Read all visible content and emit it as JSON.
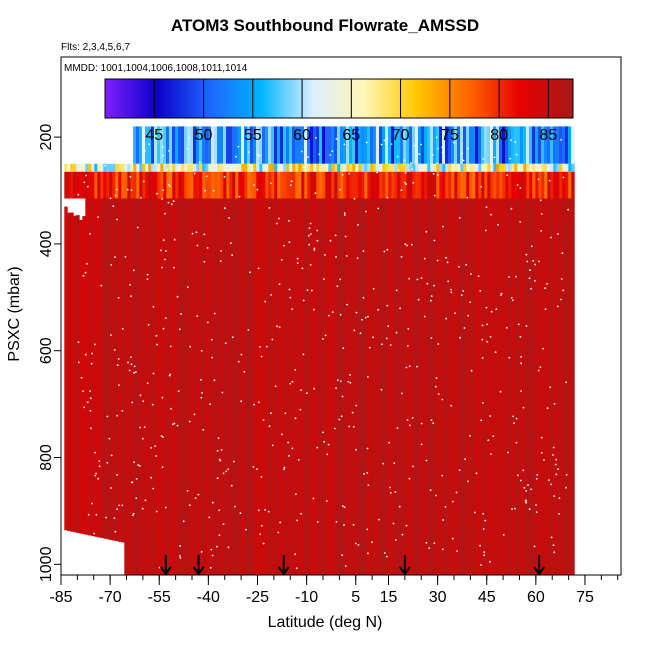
{
  "chart_data": {
    "type": "heatmap",
    "title": "ATOM3 Southbound Flowrate_AMSSD",
    "subtitle": "Flts: 2,3,4,5,6,7",
    "annotation": "MMDD: 1001,1004,1006,1008,1011,1014",
    "xlabel": "Latitude (deg N)",
    "ylabel": "PSXC (mbar)",
    "xlim": [
      -85,
      86
    ],
    "ylim": [
      1020,
      50
    ],
    "x_ticks": [
      -85,
      -70,
      -55,
      -40,
      -25,
      -10,
      5,
      15,
      30,
      45,
      60,
      75
    ],
    "x_minor_step": 5,
    "y_ticks": [
      200,
      400,
      600,
      800,
      1000
    ],
    "colorbar": {
      "ticks": [
        45,
        50,
        55,
        60,
        65,
        70,
        75,
        80,
        85
      ],
      "range": [
        40,
        87.5
      ],
      "colors": [
        "#7f1fff",
        "#0a00c8",
        "#1e64ff",
        "#00b4ff",
        "#dcf0ff",
        "#fff5b4",
        "#ffc800",
        "#ff6400",
        "#e60000",
        "#a81818"
      ]
    },
    "layers": [
      {
        "p_top": 180,
        "p_bottom": 250,
        "lat_min": -63,
        "lat_max": 71,
        "range": [
          46,
          62
        ]
      },
      {
        "p_top": 250,
        "p_bottom": 265,
        "lat_min": -84,
        "lat_max": 71,
        "range": [
          56,
          74
        ]
      },
      {
        "p_top": 265,
        "p_bottom": 315,
        "lat_min": -84,
        "lat_max": 71,
        "range": [
          76,
          85
        ]
      },
      {
        "p_top": 315,
        "p_bottom": 1020,
        "lat_min": -84,
        "lat_max": 71,
        "range": [
          84,
          87
        ]
      }
    ],
    "flight_markers_lat": [
      -53,
      -43,
      -17,
      20,
      61
    ]
  }
}
